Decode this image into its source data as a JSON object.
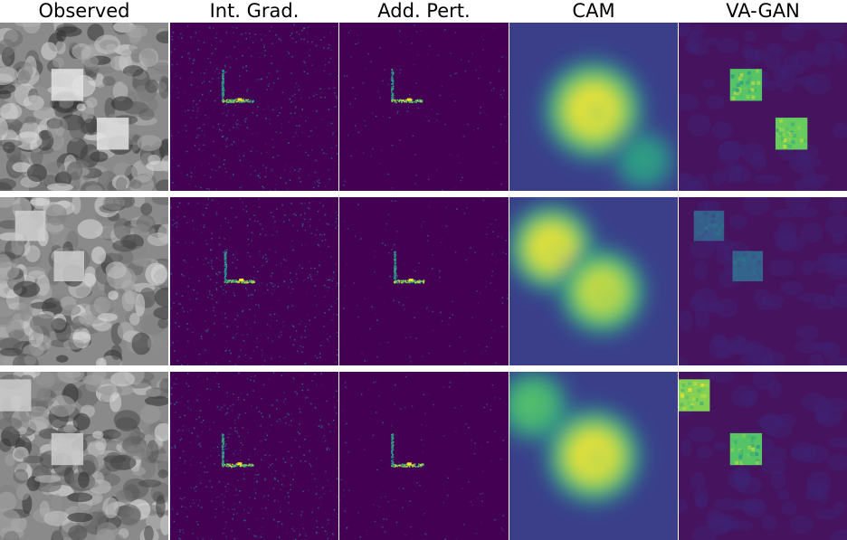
{
  "figure": {
    "columns": [
      {
        "id": "observed",
        "title": "Observed",
        "style": "gray"
      },
      {
        "id": "int-grad",
        "title": "Int. Grad.",
        "style": "sparse"
      },
      {
        "id": "add-pert",
        "title": "Add. Pert.",
        "style": "sparse-fine"
      },
      {
        "id": "cam",
        "title": "CAM",
        "style": "blob"
      },
      {
        "id": "va-gan",
        "title": "VA-GAN",
        "style": "square"
      }
    ],
    "rows": [
      {
        "id": "row-1",
        "squares": [
          [
            0.4,
            0.37,
            0.19
          ],
          [
            0.67,
            0.66,
            0.19
          ]
        ],
        "cam_blobs": [
          [
            0.5,
            0.52,
            0.23,
            1.0
          ],
          [
            0.8,
            0.82,
            0.15,
            0.6
          ]
        ],
        "vagan_intensity": [
          0.85,
          0.9
        ]
      },
      {
        "id": "row-2",
        "squares": [
          [
            0.18,
            0.17,
            0.18
          ],
          [
            0.41,
            0.41,
            0.18
          ]
        ],
        "cam_blobs": [
          [
            0.25,
            0.3,
            0.2,
            1.0
          ],
          [
            0.55,
            0.56,
            0.2,
            0.95
          ]
        ],
        "vagan_intensity": [
          0.35,
          0.38
        ]
      },
      {
        "id": "row-3",
        "squares": [
          [
            0.09,
            0.14,
            0.19
          ],
          [
            0.4,
            0.46,
            0.19
          ]
        ],
        "cam_blobs": [
          [
            0.14,
            0.2,
            0.17,
            0.75
          ],
          [
            0.5,
            0.5,
            0.22,
            1.0
          ]
        ],
        "vagan_intensity": [
          0.95,
          0.85
        ]
      }
    ],
    "colors": {
      "viridis_low": "#440154",
      "viridis_mid": "#21918c",
      "viridis_high": "#fde725",
      "panel_bg_dark": "#3b0f70"
    }
  }
}
